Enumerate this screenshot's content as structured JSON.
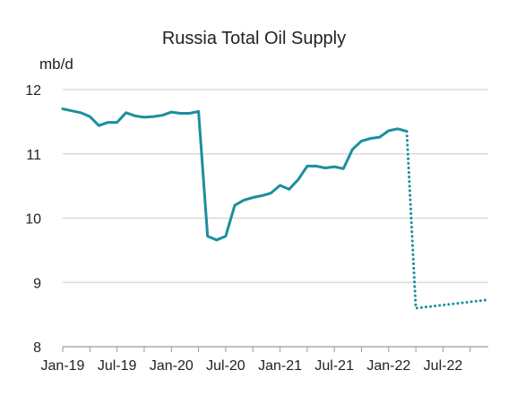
{
  "chart_data": {
    "type": "line",
    "title": "Russia Total Oil Supply",
    "ylabel": "mb/d",
    "xlabel": "",
    "ylim": [
      8,
      12
    ],
    "yticks": [
      8,
      9,
      10,
      11,
      12
    ],
    "x_tick_labels": [
      "Jan-19",
      "Jul-19",
      "Jan-20",
      "Jul-20",
      "Jan-21",
      "Jul-21",
      "Jan-22",
      "Jul-22"
    ],
    "grid": "horizontal",
    "color": "#1b8f9e",
    "series": [
      {
        "style": "solid",
        "x": [
          "Jan-19",
          "Feb-19",
          "Mar-19",
          "Apr-19",
          "May-19",
          "Jun-19",
          "Jul-19",
          "Aug-19",
          "Sep-19",
          "Oct-19",
          "Nov-19",
          "Dec-19",
          "Jan-20",
          "Feb-20",
          "Mar-20",
          "Apr-20",
          "May-20",
          "Jun-20",
          "Jul-20",
          "Aug-20",
          "Sep-20",
          "Oct-20",
          "Nov-20",
          "Dec-20",
          "Jan-21",
          "Feb-21",
          "Mar-21",
          "Apr-21",
          "May-21",
          "Jun-21",
          "Jul-21",
          "Aug-21",
          "Sep-21",
          "Oct-21",
          "Nov-21",
          "Dec-21",
          "Jan-22",
          "Feb-22",
          "Mar-22"
        ],
        "values": [
          11.7,
          11.67,
          11.64,
          11.58,
          11.44,
          11.49,
          11.49,
          11.64,
          11.59,
          11.57,
          11.58,
          11.6,
          11.65,
          11.63,
          11.63,
          11.66,
          9.72,
          9.66,
          9.72,
          10.2,
          10.28,
          10.32,
          10.35,
          10.39,
          10.51,
          10.45,
          10.6,
          10.81,
          10.81,
          10.78,
          10.8,
          10.77,
          11.07,
          11.2,
          11.24,
          11.26,
          11.36,
          11.39,
          11.35
        ]
      },
      {
        "style": "dotted",
        "x": [
          "Mar-22",
          "Apr-22",
          "Dec-22"
        ],
        "values": [
          11.35,
          8.6,
          8.73
        ]
      }
    ]
  }
}
